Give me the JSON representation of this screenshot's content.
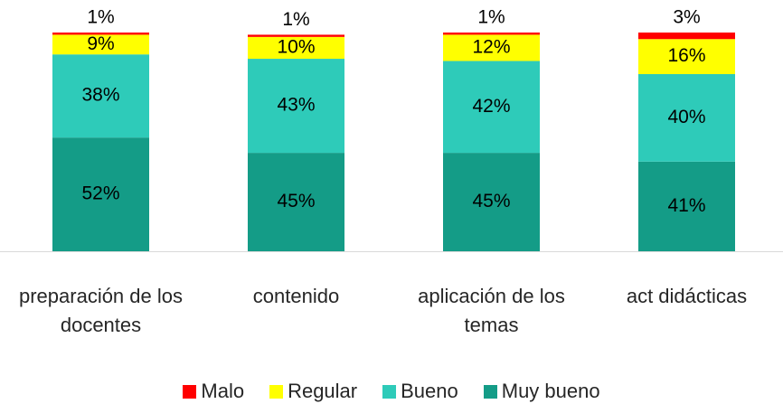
{
  "chart_data": {
    "type": "stacked_bar",
    "categories": [
      "preparación de los docentes",
      "contenido",
      "aplicación de los temas",
      "act didácticas"
    ],
    "series": [
      {
        "name": "Muy bueno",
        "color": "#149c87",
        "values": [
          52,
          45,
          45,
          41
        ],
        "value_labels": [
          "52%",
          "45%",
          "45%",
          "41%"
        ]
      },
      {
        "name": "Bueno",
        "color": "#2ecbb9",
        "values": [
          38,
          43,
          42,
          40
        ],
        "value_labels": [
          "38%",
          "43%",
          "42%",
          "40%"
        ]
      },
      {
        "name": "Regular",
        "color": "#ffff00",
        "values": [
          9,
          10,
          12,
          16
        ],
        "value_labels": [
          "9%",
          "10%",
          "12%",
          "16%"
        ]
      },
      {
        "name": "Malo",
        "color": "#ff0000",
        "values": [
          1,
          1,
          1,
          3
        ],
        "value_labels": [
          "1%",
          "1%",
          "1%",
          "3%"
        ]
      }
    ],
    "legend_order": [
      3,
      2,
      1,
      0
    ],
    "ylim": [
      0,
      100
    ]
  }
}
